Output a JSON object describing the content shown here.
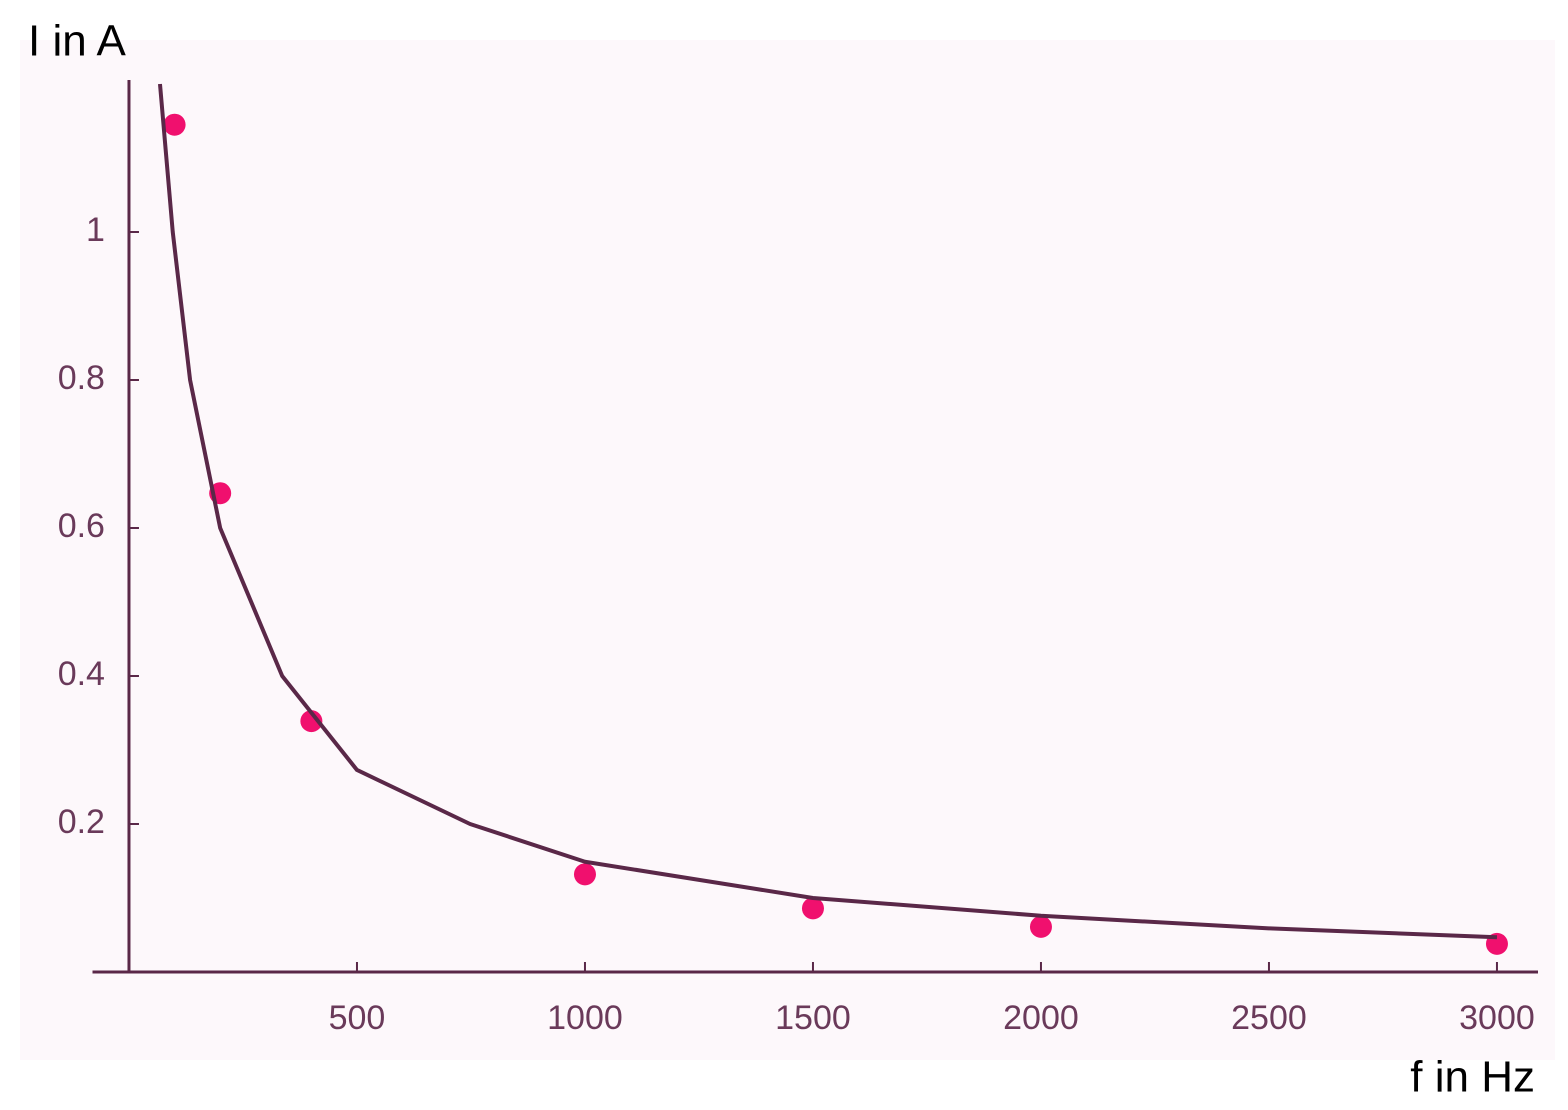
{
  "chart_data": {
    "type": "scatter",
    "y_label": "I in A",
    "x_label": "f in Hz",
    "xlim": [
      -80,
      3090
    ],
    "ylim": [
      0,
      1.2
    ],
    "xticks": [
      500,
      1000,
      1500,
      2000,
      2500,
      3000
    ],
    "yticks": [
      0.2,
      0.4,
      0.6,
      0.8,
      1
    ],
    "axis_color": "#5a2848",
    "series": [
      {
        "type": "scatter",
        "color": "#f0106e",
        "x": [
          100,
          200,
          400,
          1000,
          1500,
          2000,
          3000
        ],
        "values": [
          1.145,
          0.647,
          0.339,
          0.132,
          0.086,
          0.061,
          0.038
        ]
      },
      {
        "type": "line",
        "color": "#5a2848",
        "x": [
          68,
          96,
          134,
          200,
          336,
          500,
          748,
          1000,
          1500,
          2000,
          2500,
          3000
        ],
        "values": [
          1.2,
          1.0,
          0.8,
          0.6,
          0.4,
          0.273,
          0.2,
          0.149,
          0.1,
          0.076,
          0.059,
          0.047
        ]
      }
    ]
  }
}
